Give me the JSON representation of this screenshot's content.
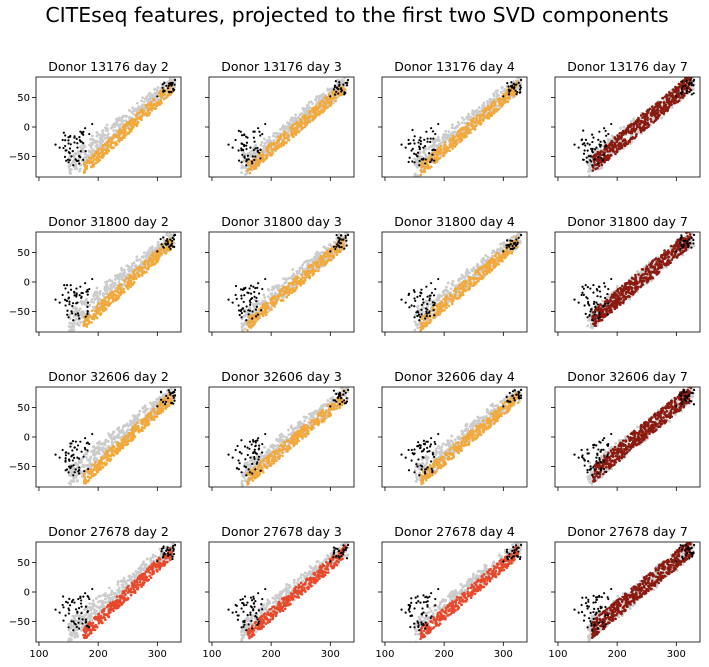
{
  "figure": {
    "suptitle": "CITEseq features, projected to the first two SVD components"
  },
  "colors": {
    "background_cells": "#cccccc",
    "outlier_cells": "#000000",
    "day_2_3_4": "#f2a93b",
    "donor_27678_day_2_3_4": "#e8482a",
    "day_7": "#8b1a10"
  },
  "chart_data": {
    "type": "scatter",
    "grid": false,
    "sharex": true,
    "sharey": true,
    "xlim": [
      95,
      340
    ],
    "ylim": [
      -85,
      85
    ],
    "xticks": [
      100,
      200,
      300
    ],
    "yticks": [
      -50,
      0,
      50
    ],
    "rows": [
      "13176",
      "31800",
      "32606",
      "27678"
    ],
    "cols": [
      "2",
      "3",
      "4",
      "7"
    ],
    "panels": [
      {
        "title": "Donor 13176 day 2",
        "highlight": "#f2a93b"
      },
      {
        "title": "Donor 13176 day 3",
        "highlight": "#f2a93b"
      },
      {
        "title": "Donor 13176 day 4",
        "highlight": "#f2a93b"
      },
      {
        "title": "Donor 13176 day 7",
        "highlight": "#8b1a10"
      },
      {
        "title": "Donor 31800 day 2",
        "highlight": "#f2a93b"
      },
      {
        "title": "Donor 31800 day 3",
        "highlight": "#f2a93b"
      },
      {
        "title": "Donor 31800 day 4",
        "highlight": "#f2a93b"
      },
      {
        "title": "Donor 31800 day 7",
        "highlight": "#8b1a10"
      },
      {
        "title": "Donor 32606 day 2",
        "highlight": "#f2a93b"
      },
      {
        "title": "Donor 32606 day 3",
        "highlight": "#f2a93b"
      },
      {
        "title": "Donor 32606 day 4",
        "highlight": "#f2a93b"
      },
      {
        "title": "Donor 32606 day 7",
        "highlight": "#8b1a10"
      },
      {
        "title": "Donor 27678 day 2",
        "highlight": "#e8482a"
      },
      {
        "title": "Donor 27678 day 3",
        "highlight": "#e8482a"
      },
      {
        "title": "Donor 27678 day 4",
        "highlight": "#e8482a"
      },
      {
        "title": "Donor 27678 day 7",
        "highlight": "#8b1a10"
      }
    ],
    "background_cloud": [
      [
        150,
        -72
      ],
      [
        175,
        -62
      ],
      [
        200,
        -48
      ],
      [
        225,
        -32
      ],
      [
        250,
        -15
      ],
      [
        275,
        5
      ],
      [
        300,
        28
      ],
      [
        320,
        52
      ],
      [
        328,
        70
      ],
      [
        155,
        -45
      ],
      [
        180,
        -25
      ],
      [
        205,
        -8
      ],
      [
        230,
        10
      ],
      [
        255,
        28
      ],
      [
        280,
        44
      ],
      [
        305,
        60
      ],
      [
        318,
        72
      ]
    ],
    "black_outliers": [
      [
        128,
        -30
      ],
      [
        135,
        -35
      ],
      [
        140,
        -22
      ],
      [
        145,
        -40
      ],
      [
        150,
        -28
      ],
      [
        155,
        -50
      ],
      [
        160,
        -18
      ],
      [
        165,
        -35
      ],
      [
        170,
        -8
      ],
      [
        172,
        -25
      ],
      [
        178,
        -2
      ],
      [
        185,
        -12
      ],
      [
        190,
        5
      ],
      [
        150,
        -60
      ],
      [
        158,
        -65
      ],
      [
        162,
        -55
      ],
      [
        168,
        -62
      ],
      [
        300,
        52
      ],
      [
        310,
        60
      ],
      [
        318,
        66
      ],
      [
        322,
        72
      ],
      [
        326,
        75
      ],
      [
        330,
        80
      ],
      [
        315,
        70
      ]
    ],
    "highlight_cloud": [
      [
        170,
        -58
      ],
      [
        190,
        -50
      ],
      [
        210,
        -40
      ],
      [
        230,
        -28
      ],
      [
        250,
        -14
      ],
      [
        270,
        0
      ],
      [
        290,
        18
      ],
      [
        305,
        35
      ],
      [
        315,
        50
      ],
      [
        200,
        -30
      ],
      [
        225,
        -15
      ],
      [
        250,
        0
      ],
      [
        275,
        18
      ],
      [
        295,
        35
      ]
    ]
  }
}
